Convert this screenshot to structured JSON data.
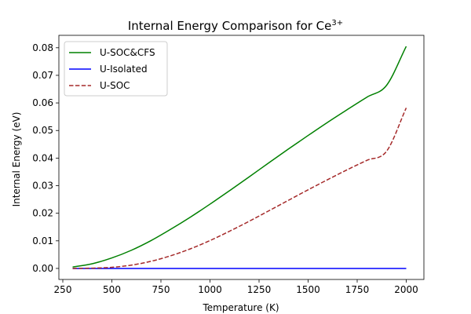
{
  "chart_data": {
    "type": "line",
    "title_main": "Internal Energy Comparison for Ce",
    "title_sup": "3+",
    "xlabel": "Temperature (K)",
    "ylabel": "Internal Energy (eV)",
    "xlim": [
      230,
      2090
    ],
    "ylim": [
      -0.004,
      0.0845
    ],
    "xticks": [
      250,
      500,
      750,
      1000,
      1250,
      1500,
      1750,
      2000
    ],
    "xtick_labels": [
      "250",
      "500",
      "750",
      "1000",
      "1250",
      "1500",
      "1750",
      "2000"
    ],
    "yticks": [
      0.0,
      0.01,
      0.02,
      0.03,
      0.04,
      0.05,
      0.06,
      0.07,
      0.08
    ],
    "ytick_labels": [
      "0.00",
      "0.01",
      "0.02",
      "0.03",
      "0.04",
      "0.05",
      "0.06",
      "0.07",
      "0.08"
    ],
    "grid": false,
    "legend_position": "top-left",
    "x": [
      300,
      400,
      500,
      600,
      700,
      800,
      900,
      1000,
      1100,
      1200,
      1300,
      1400,
      1500,
      1600,
      1700,
      1800,
      1900,
      2000
    ],
    "series": [
      {
        "name": "U-SOC&CFS",
        "color": "#008000",
        "dash": "solid",
        "values": [
          0.0005,
          0.0017,
          0.0038,
          0.0066,
          0.0101,
          0.0142,
          0.0186,
          0.0233,
          0.0282,
          0.0332,
          0.0383,
          0.0433,
          0.0482,
          0.053,
          0.0576,
          0.0621,
          0.0664,
          0.0805
        ]
      },
      {
        "name": "U-Isolated",
        "color": "#0000ff",
        "dash": "solid",
        "values": [
          0.0,
          0.0,
          0.0,
          0.0,
          0.0,
          0.0,
          0.0,
          0.0,
          0.0,
          0.0,
          0.0,
          0.0,
          0.0,
          0.0,
          0.0,
          0.0,
          0.0,
          0.0
        ]
      },
      {
        "name": "U-SOC",
        "color": "#a52a2a",
        "dash": "dashed",
        "values": [
          0.0,
          0.0001,
          0.0004,
          0.0012,
          0.0026,
          0.0046,
          0.0071,
          0.0101,
          0.0135,
          0.0171,
          0.0209,
          0.0247,
          0.0285,
          0.0322,
          0.0358,
          0.0392,
          0.0425,
          0.0582
        ]
      }
    ]
  }
}
